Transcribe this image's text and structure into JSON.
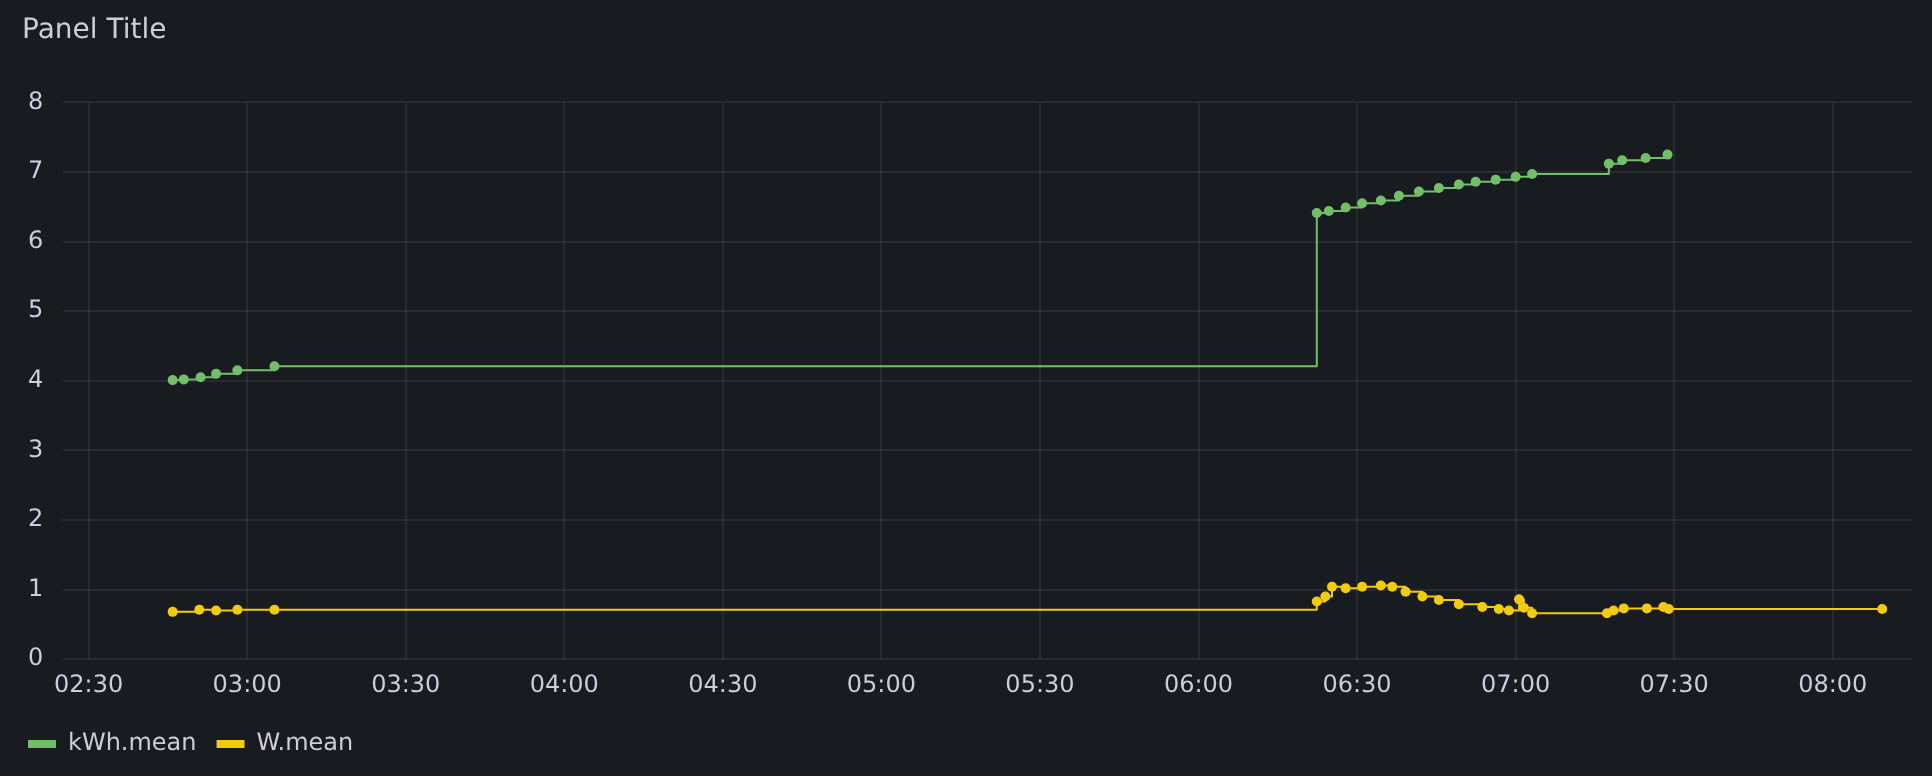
{
  "chart_data": {
    "type": "step",
    "title": "Panel Title",
    "xlim": [
      2.42,
      8.25
    ],
    "xticks": [
      {
        "value": 2.5,
        "label": "02:30"
      },
      {
        "value": 3,
        "label": "03:00"
      },
      {
        "value": 3.5,
        "label": "03:30"
      },
      {
        "value": 4,
        "label": "04:00"
      },
      {
        "value": 4.5,
        "label": "04:30"
      },
      {
        "value": 5,
        "label": "05:00"
      },
      {
        "value": 5.5,
        "label": "05:30"
      },
      {
        "value": 6,
        "label": "06:00"
      },
      {
        "value": 6.5,
        "label": "06:30"
      },
      {
        "value": 7,
        "label": "07:00"
      },
      {
        "value": 7.5,
        "label": "07:30"
      },
      {
        "value": 8,
        "label": "08:00"
      }
    ],
    "ylim": [
      0,
      8
    ],
    "yticks": [
      0,
      1,
      2,
      3,
      4,
      5,
      6,
      7,
      8
    ],
    "grid": true,
    "legend": "bottom left",
    "marker": "circle",
    "line_style": "solid",
    "series": [
      {
        "name": "kWh.mean",
        "color": "#73bf69",
        "x": [
          2.765,
          2.8,
          2.853,
          2.902,
          2.969,
          3.086,
          6.373,
          6.411,
          6.464,
          6.516,
          6.575,
          6.632,
          6.695,
          6.758,
          6.821,
          6.874,
          6.937,
          7.0,
          7.052,
          7.294,
          7.336,
          7.41,
          7.479
        ],
        "values": [
          4.01,
          4.02,
          4.05,
          4.1,
          4.15,
          4.21,
          6.41,
          6.44,
          6.49,
          6.55,
          6.59,
          6.66,
          6.72,
          6.77,
          6.82,
          6.86,
          6.89,
          6.93,
          6.97,
          7.12,
          7.17,
          7.2,
          7.25
        ]
      },
      {
        "name": "W.mean",
        "color": "#f2cc0c",
        "x": [
          2.765,
          2.849,
          2.902,
          2.969,
          3.086,
          6.373,
          6.4,
          6.421,
          6.464,
          6.516,
          6.575,
          6.611,
          6.653,
          6.706,
          6.758,
          6.821,
          6.895,
          6.947,
          6.979,
          7.011,
          7.026,
          7.052,
          7.288,
          7.309,
          7.341,
          7.414,
          7.466,
          7.483,
          8.156
        ],
        "values": [
          0.68,
          0.71,
          0.7,
          0.71,
          0.71,
          0.83,
          0.9,
          1.04,
          1.02,
          1.04,
          1.06,
          1.04,
          0.97,
          0.9,
          0.85,
          0.79,
          0.75,
          0.72,
          0.7,
          0.86,
          0.74,
          0.66,
          0.66,
          0.7,
          0.73,
          0.73,
          0.75,
          0.72,
          0.72
        ]
      }
    ]
  }
}
